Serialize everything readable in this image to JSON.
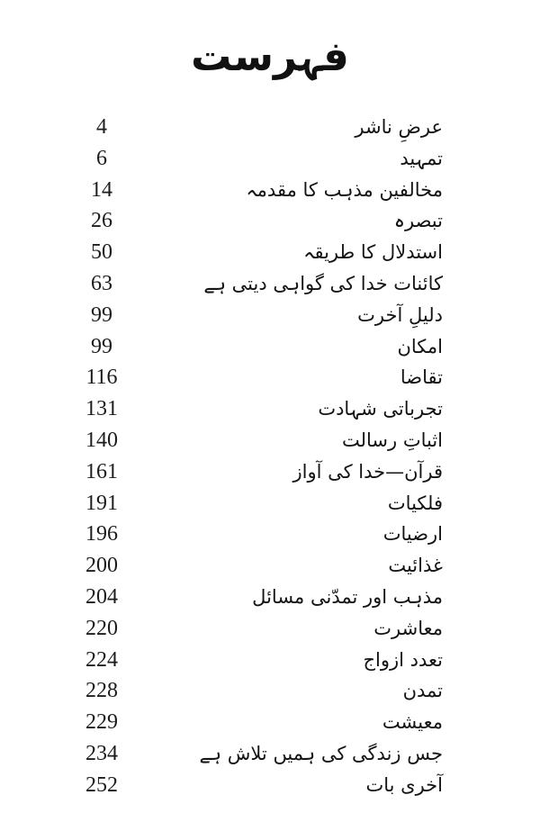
{
  "colors": {
    "page_background": "#ffffff",
    "text": "#1a1a1a"
  },
  "page": {
    "title": "فہرست",
    "toc": {
      "entries": [
        {
          "label": "عرضِ ناشر",
          "page_number": "4"
        },
        {
          "label": "تمہید",
          "page_number": "6"
        },
        {
          "label": "مخالفین مذہب کا مقدمہ",
          "page_number": "14"
        },
        {
          "label": "تبصرہ",
          "page_number": "26"
        },
        {
          "label": "استدلال کا طریقہ",
          "page_number": "50"
        },
        {
          "label": "کائنات خدا کی گواہی دیتی ہے",
          "page_number": "63"
        },
        {
          "label": "دلیلِ آخرت",
          "page_number": "99"
        },
        {
          "label": "امکان",
          "page_number": "99"
        },
        {
          "label": "تقاضا",
          "page_number": "116"
        },
        {
          "label": "تجرباتی شہادت",
          "page_number": "131"
        },
        {
          "label": "اثباتِ رسالت",
          "page_number": "140"
        },
        {
          "label": "قرآن—خدا کی آواز",
          "page_number": "161"
        },
        {
          "label": "فلکیات",
          "page_number": "191"
        },
        {
          "label": "ارضیات",
          "page_number": "196"
        },
        {
          "label": "غذائیت",
          "page_number": "200"
        },
        {
          "label": "مذہب اور تمدّنی مسائل",
          "page_number": "204"
        },
        {
          "label": "معاشرت",
          "page_number": "220"
        },
        {
          "label": "تعدد ازواج",
          "page_number": "224"
        },
        {
          "label": "تمدن",
          "page_number": "228"
        },
        {
          "label": "معیشت",
          "page_number": "229"
        },
        {
          "label": "جس زندگی کی ہمیں تلاش ہے",
          "page_number": "234"
        },
        {
          "label": "آخری بات",
          "page_number": "252"
        }
      ]
    }
  }
}
